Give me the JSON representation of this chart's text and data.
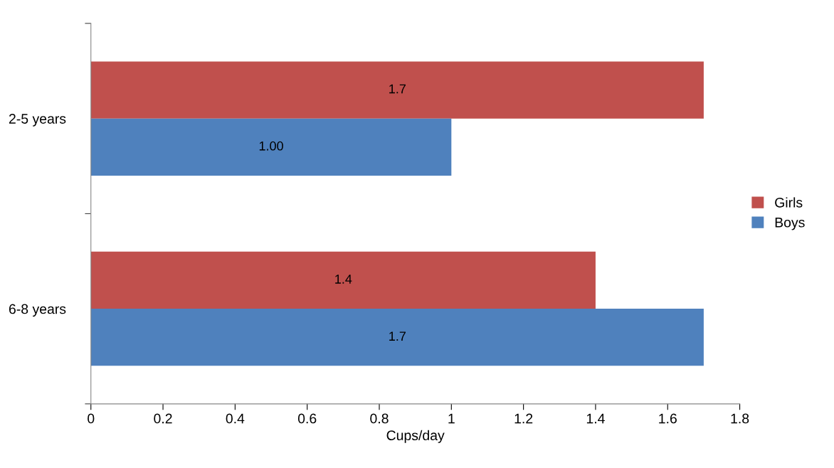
{
  "chart_data": {
    "type": "bar",
    "orientation": "horizontal",
    "xlabel": "Cups/day",
    "categories": [
      "2-5 years",
      "6-8 years"
    ],
    "series": [
      {
        "name": "Girls",
        "color": "#c0504d",
        "values": [
          1.7,
          1.4
        ],
        "value_labels": [
          "1.7",
          "1.4"
        ]
      },
      {
        "name": "Boys",
        "color": "#4f81bd",
        "values": [
          1.0,
          1.7
        ],
        "value_labels": [
          "1.00",
          "1.7"
        ]
      }
    ],
    "xlim": [
      0,
      1.8
    ],
    "xticks": [
      0,
      0.2,
      0.4,
      0.6,
      0.8,
      1,
      1.2,
      1.4,
      1.6,
      1.8
    ],
    "grid": false,
    "legend": "right"
  }
}
